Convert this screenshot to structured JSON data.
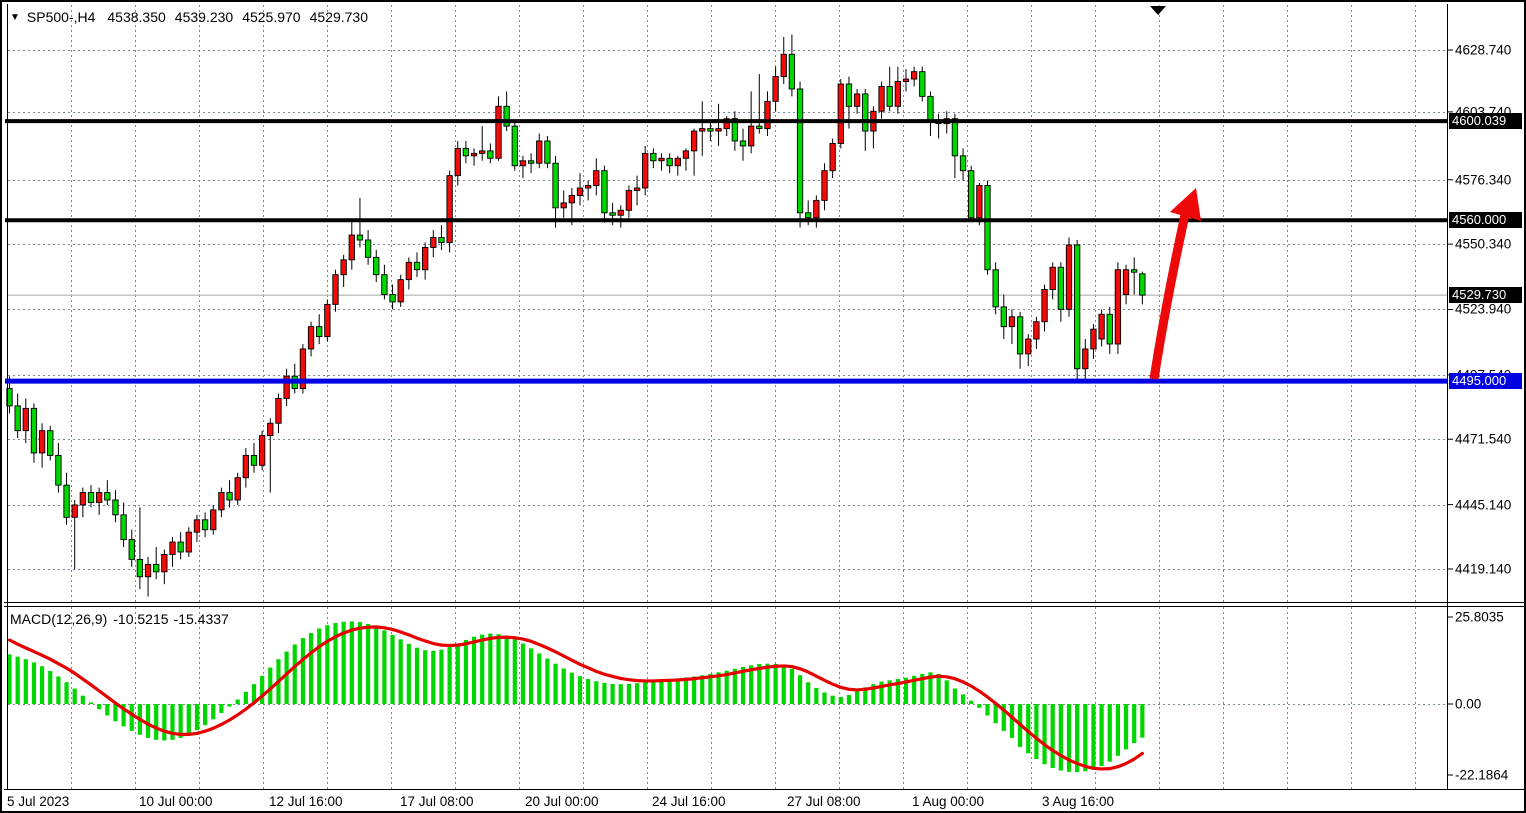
{
  "header": {
    "dropdown_icon": "▼",
    "symbol_period": "SP500-,H4",
    "open": "4538.350",
    "high": "4539.230",
    "low": "4525.970",
    "close": "4529.730"
  },
  "indicator_label": {
    "name": "MACD(12,26,9)",
    "main_value": "-10.5215",
    "signal_value": "-15.4337"
  },
  "price_axis": {
    "ticks": [
      "4628.740",
      "4603.740",
      "4576.340",
      "4550.340",
      "4523.940",
      "4497.540",
      "4471.540",
      "4445.140",
      "4419.140"
    ],
    "tags": [
      {
        "text": "4600.039",
        "price": 4600.039,
        "bg": "#000000"
      },
      {
        "text": "4560.000",
        "price": 4560.0,
        "bg": "#000000"
      },
      {
        "text": "4529.730",
        "price": 4529.73,
        "bg": "#000000"
      },
      {
        "text": "4495.000",
        "price": 4495.0,
        "bg": "#0000e0"
      }
    ]
  },
  "macd_axis": {
    "ticks": [
      "25.8035",
      "0.00",
      "-22.1864"
    ]
  },
  "time_axis": {
    "labels": [
      {
        "text": "5 Jul 2023",
        "x": 5
      },
      {
        "text": "10 Jul 00:00",
        "x": 137
      },
      {
        "text": "12 Jul 16:00",
        "x": 267
      },
      {
        "text": "17 Jul 08:00",
        "x": 398
      },
      {
        "text": "20 Jul 00:00",
        "x": 523
      },
      {
        "text": "24 Jul 16:00",
        "x": 650
      },
      {
        "text": "27 Jul 08:00",
        "x": 785
      },
      {
        "text": "1 Aug 00:00",
        "x": 910
      },
      {
        "text": "3 Aug 16:00",
        "x": 1040
      }
    ]
  },
  "colors": {
    "bull": "#f20b0b",
    "bear": "#00d600",
    "wick": "#000000",
    "grid": "#778899",
    "macd_hist": "#00d600",
    "macd_signal": "#e60000",
    "arrow": "#ed0909",
    "tag_text": "#ffffff",
    "current_price_line": "#a8a8a8",
    "background": "#ffffff"
  },
  "chart_data": {
    "type": "candlestick",
    "symbol": "SP500-",
    "timeframe": "H4",
    "title": "SP500-,H4 4538.350 4539.230 4525.970 4529.730",
    "ylim": [
      4405,
      4647
    ],
    "levels": [
      {
        "price": 4600.039,
        "kind": "resistance",
        "color": "#000000",
        "width": 4
      },
      {
        "price": 4560.0,
        "kind": "resistance",
        "color": "#000000",
        "width": 4
      },
      {
        "price": 4495.0,
        "kind": "support",
        "color": "#0000e0",
        "width": 5
      },
      {
        "price": 4529.73,
        "kind": "current-price",
        "color": "#a8a8a8",
        "width": 1
      }
    ],
    "candles": [
      [
        4492,
        4497,
        4482,
        4485
      ],
      [
        4485,
        4490,
        4472,
        4475
      ],
      [
        4475,
        4488,
        4470,
        4484
      ],
      [
        4484,
        4486,
        4462,
        4466
      ],
      [
        4466,
        4478,
        4460,
        4475
      ],
      [
        4475,
        4477,
        4463,
        4465
      ],
      [
        4465,
        4470,
        4450,
        4453
      ],
      [
        4453,
        4458,
        4437,
        4440
      ],
      [
        4440,
        4447,
        4419,
        4445
      ],
      [
        4445,
        4452,
        4440,
        4450
      ],
      [
        4450,
        4453,
        4444,
        4446
      ],
      [
        4446,
        4452,
        4441,
        4450
      ],
      [
        4450,
        4455,
        4445,
        4447
      ],
      [
        4447,
        4451,
        4438,
        4441
      ],
      [
        4441,
        4446,
        4428,
        4431
      ],
      [
        4431,
        4435,
        4420,
        4423
      ],
      [
        4423,
        4444,
        4411,
        4416
      ],
      [
        4416,
        4424,
        4408,
        4421
      ],
      [
        4421,
        4428,
        4415,
        4418
      ],
      [
        4418,
        4427,
        4413,
        4425
      ],
      [
        4425,
        4432,
        4420,
        4430
      ],
      [
        4430,
        4434,
        4423,
        4426
      ],
      [
        4426,
        4436,
        4424,
        4434
      ],
      [
        4434,
        4441,
        4430,
        4439
      ],
      [
        4439,
        4442,
        4432,
        4435
      ],
      [
        4435,
        4445,
        4433,
        4443
      ],
      [
        4443,
        4452,
        4440,
        4450
      ],
      [
        4450,
        4455,
        4444,
        4447
      ],
      [
        4447,
        4458,
        4445,
        4456
      ],
      [
        4456,
        4468,
        4452,
        4465
      ],
      [
        4465,
        4470,
        4458,
        4461
      ],
      [
        4461,
        4475,
        4459,
        4473
      ],
      [
        4473,
        4480,
        4450,
        4478
      ],
      [
        4478,
        4490,
        4474,
        4488
      ],
      [
        4488,
        4500,
        4485,
        4497
      ],
      [
        4497,
        4502,
        4490,
        4492
      ],
      [
        4492,
        4510,
        4490,
        4508
      ],
      [
        4508,
        4519,
        4505,
        4517
      ],
      [
        4517,
        4522,
        4510,
        4513
      ],
      [
        4513,
        4528,
        4511,
        4526
      ],
      [
        4526,
        4540,
        4523,
        4538
      ],
      [
        4538,
        4546,
        4533,
        4544
      ],
      [
        4544,
        4560,
        4540,
        4554
      ],
      [
        4554,
        4569,
        4549,
        4552
      ],
      [
        4552,
        4556,
        4542,
        4545
      ],
      [
        4545,
        4548,
        4535,
        4538
      ],
      [
        4538,
        4542,
        4528,
        4530
      ],
      [
        4530,
        4534,
        4524,
        4527
      ],
      [
        4527,
        4538,
        4525,
        4536
      ],
      [
        4536,
        4545,
        4532,
        4543
      ],
      [
        4543,
        4547,
        4537,
        4540
      ],
      [
        4540,
        4551,
        4536,
        4549
      ],
      [
        4549,
        4556,
        4545,
        4553
      ],
      [
        4553,
        4558,
        4548,
        4551
      ],
      [
        4551,
        4580,
        4547,
        4578
      ],
      [
        4578,
        4592,
        4574,
        4589
      ],
      [
        4589,
        4592,
        4583,
        4586
      ],
      [
        4586,
        4589,
        4582,
        4587
      ],
      [
        4587,
        4598,
        4584,
        4588
      ],
      [
        4588,
        4591,
        4583,
        4585
      ],
      [
        4585,
        4610,
        4584,
        4606
      ],
      [
        4606,
        4612,
        4596,
        4598
      ],
      [
        4598,
        4600,
        4580,
        4582
      ],
      [
        4582,
        4586,
        4577,
        4584
      ],
      [
        4584,
        4587,
        4579,
        4583
      ],
      [
        4583,
        4595,
        4581,
        4592
      ],
      [
        4592,
        4594,
        4581,
        4583
      ],
      [
        4583,
        4586,
        4557,
        4565
      ],
      [
        4565,
        4572,
        4561,
        4567
      ],
      [
        4567,
        4573,
        4558,
        4570
      ],
      [
        4570,
        4579,
        4566,
        4573
      ],
      [
        4573,
        4576,
        4568,
        4574
      ],
      [
        4574,
        4585,
        4570,
        4580
      ],
      [
        4580,
        4582,
        4559,
        4563
      ],
      [
        4563,
        4567,
        4558,
        4562
      ],
      [
        4562,
        4566,
        4557,
        4564
      ],
      [
        4564,
        4574,
        4561,
        4572
      ],
      [
        4572,
        4578,
        4566,
        4573
      ],
      [
        4573,
        4590,
        4570,
        4587
      ],
      [
        4587,
        4589,
        4581,
        4584
      ],
      [
        4584,
        4587,
        4580,
        4585
      ],
      [
        4585,
        4587,
        4579,
        4582
      ],
      [
        4582,
        4586,
        4578,
        4585
      ],
      [
        4585,
        4589,
        4580,
        4588
      ],
      [
        4588,
        4597,
        4578,
        4596
      ],
      [
        4596,
        4608,
        4586,
        4597
      ],
      [
        4597,
        4600,
        4592,
        4596
      ],
      [
        4596,
        4607,
        4590,
        4597
      ],
      [
        4597,
        4602,
        4594,
        4601
      ],
      [
        4601,
        4604,
        4588,
        4592
      ],
      [
        4592,
        4597,
        4584,
        4590
      ],
      [
        4590,
        4612,
        4587,
        4598
      ],
      [
        4598,
        4619,
        4595,
        4597
      ],
      [
        4597,
        4612,
        4594,
        4608
      ],
      [
        4608,
        4622,
        4604,
        4618
      ],
      [
        4618,
        4634,
        4615,
        4627
      ],
      [
        4627,
        4635,
        4610,
        4613
      ],
      [
        4613,
        4616,
        4557,
        4563
      ],
      [
        4563,
        4568,
        4558,
        4561
      ],
      [
        4561,
        4570,
        4557,
        4568
      ],
      [
        4568,
        4583,
        4564,
        4580
      ],
      [
        4580,
        4593,
        4577,
        4591
      ],
      [
        4591,
        4617,
        4589,
        4615
      ],
      [
        4615,
        4618,
        4597,
        4606
      ],
      [
        4606,
        4613,
        4603,
        4611
      ],
      [
        4611,
        4613,
        4588,
        4596
      ],
      [
        4596,
        4606,
        4589,
        4604
      ],
      [
        4604,
        4616,
        4601,
        4614
      ],
      [
        4614,
        4622,
        4604,
        4606
      ],
      [
        4606,
        4622,
        4603,
        4616
      ],
      [
        4616,
        4621,
        4612,
        4617
      ],
      [
        4617,
        4622,
        4614,
        4620
      ],
      [
        4620,
        4622,
        4608,
        4610
      ],
      [
        4610,
        4612,
        4594,
        4600
      ],
      [
        4600,
        4603,
        4593,
        4599
      ],
      [
        4599,
        4604,
        4595,
        4601
      ],
      [
        4601,
        4603,
        4577,
        4586
      ],
      [
        4586,
        4589,
        4576,
        4580
      ],
      [
        4580,
        4582,
        4560,
        4561
      ],
      [
        4561,
        4575,
        4558,
        4574
      ],
      [
        4574,
        4576,
        4538,
        4540
      ],
      [
        4540,
        4543,
        4522,
        4525
      ],
      [
        4525,
        4530,
        4512,
        4517
      ],
      [
        4517,
        4524,
        4510,
        4521
      ],
      [
        4521,
        4523,
        4500,
        4506
      ],
      [
        4506,
        4514,
        4501,
        4512
      ],
      [
        4512,
        4521,
        4508,
        4519
      ],
      [
        4519,
        4534,
        4515,
        4532
      ],
      [
        4532,
        4543,
        4528,
        4541
      ],
      [
        4541,
        4543,
        4519,
        4524
      ],
      [
        4524,
        4553,
        4521,
        4550
      ],
      [
        4550,
        4552,
        4495,
        4500
      ],
      [
        4500,
        4512,
        4496,
        4508
      ],
      [
        4508,
        4518,
        4504,
        4516
      ],
      [
        4512,
        4524,
        4509,
        4522
      ],
      [
        4522,
        4525,
        4506,
        4510
      ],
      [
        4510,
        4543,
        4506,
        4540
      ],
      [
        4530,
        4542,
        4526,
        4540
      ],
      [
        4540,
        4545,
        4530,
        4539
      ],
      [
        4538.35,
        4539.23,
        4525.97,
        4529.73
      ]
    ],
    "macd": {
      "params": "12,26,9",
      "ylim": [
        -22.1864,
        25.8035
      ],
      "histogram": [
        15.5,
        14.8,
        14.0,
        13.0,
        11.8,
        10.3,
        8.6,
        6.8,
        4.8,
        2.6,
        0.5,
        -1.6,
        -3.6,
        -5.4,
        -7.0,
        -8.4,
        -9.6,
        -10.6,
        -11.2,
        -11.4,
        -11.2,
        -10.6,
        -9.6,
        -8.2,
        -6.6,
        -4.8,
        -2.8,
        -0.8,
        1.4,
        3.8,
        6.2,
        8.8,
        11.4,
        14.0,
        16.4,
        18.6,
        20.6,
        22.2,
        23.6,
        24.6,
        25.3,
        25.7,
        25.8,
        25.6,
        25.0,
        24.2,
        23.0,
        21.6,
        20.2,
        18.8,
        17.6,
        16.8,
        16.6,
        17.0,
        17.8,
        18.9,
        20.0,
        21.0,
        21.7,
        22.0,
        21.8,
        21.2,
        20.2,
        18.9,
        17.4,
        15.8,
        14.2,
        12.6,
        11.1,
        9.8,
        8.7,
        7.8,
        7.1,
        6.6,
        6.3,
        6.2,
        6.3,
        6.5,
        6.8,
        7.1,
        7.4,
        7.7,
        8.0,
        8.3,
        8.6,
        9.0,
        9.4,
        9.9,
        10.4,
        11.0,
        11.6,
        12.1,
        12.5,
        12.6,
        12.5,
        12.2,
        11.0,
        9.0,
        6.8,
        5.0,
        3.6,
        2.6,
        2.2,
        2.8,
        4.0,
        5.2,
        6.2,
        7.0,
        7.4,
        7.8,
        8.2,
        8.8,
        9.4,
        9.9,
        9.4,
        7.4,
        4.8,
        3.0,
        1.0,
        -1.2,
        -3.6,
        -6.0,
        -8.4,
        -10.6,
        -13.4,
        -15.4,
        -17.2,
        -18.8,
        -20.0,
        -20.8,
        -21.2,
        -21.3,
        -21.0,
        -20.4,
        -19.4,
        -18.0,
        -16.2,
        -14.2,
        -12.2,
        -10.5215
      ],
      "signal": [
        20.0,
        18.7,
        17.5,
        16.4,
        15.2,
        14.0,
        12.6,
        11.2,
        9.6,
        7.8,
        6.0,
        4.1,
        2.2,
        0.3,
        -1.5,
        -3.2,
        -4.8,
        -6.3,
        -7.5,
        -8.5,
        -9.2,
        -9.5,
        -9.5,
        -9.2,
        -8.5,
        -7.6,
        -6.4,
        -5.0,
        -3.4,
        -1.6,
        0.4,
        2.5,
        4.7,
        7.0,
        9.4,
        11.7,
        13.9,
        16.0,
        17.9,
        19.6,
        21.0,
        22.2,
        23.1,
        23.7,
        24.0,
        24.1,
        23.8,
        23.3,
        22.5,
        21.6,
        20.6,
        19.7,
        18.9,
        18.4,
        18.3,
        18.4,
        18.8,
        19.4,
        20.0,
        20.5,
        20.8,
        20.9,
        20.7,
        20.3,
        19.6,
        18.6,
        17.5,
        16.3,
        15.0,
        13.7,
        12.4,
        11.3,
        10.2,
        9.3,
        8.6,
        8.0,
        7.6,
        7.3,
        7.2,
        7.2,
        7.3,
        7.4,
        7.5,
        7.7,
        7.9,
        8.2,
        8.5,
        8.8,
        9.2,
        9.7,
        10.2,
        10.7,
        11.1,
        11.5,
        11.8,
        11.9,
        11.7,
        11.0,
        10.0,
        8.7,
        7.4,
        6.2,
        5.2,
        4.6,
        4.4,
        4.6,
        5.0,
        5.5,
        6.0,
        6.4,
        6.9,
        7.4,
        7.9,
        8.4,
        8.7,
        8.5,
        7.9,
        6.9,
        5.6,
        4.0,
        2.2,
        0.2,
        -1.9,
        -4.1,
        -6.4,
        -8.6,
        -10.7,
        -12.7,
        -14.5,
        -16.1,
        -17.5,
        -18.6,
        -19.5,
        -20.1,
        -20.3,
        -20.2,
        -19.6,
        -18.6,
        -17.2,
        -15.4337
      ]
    },
    "annotation_arrow": {
      "from_price": 4495.0,
      "to_price": 4575.0,
      "color": "#ed0909"
    }
  }
}
